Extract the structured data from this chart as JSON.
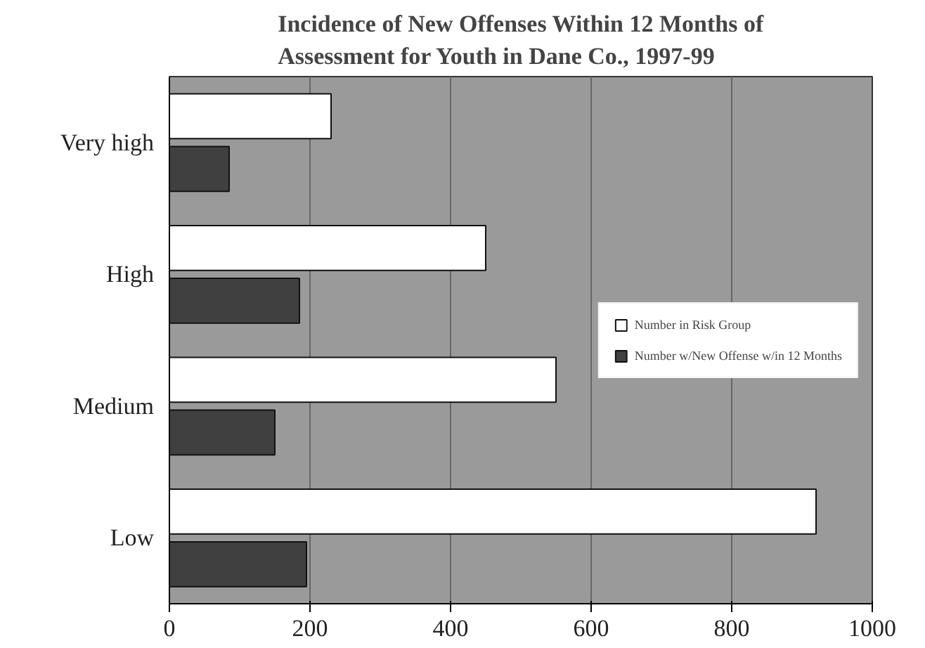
{
  "chart_data": {
    "type": "bar",
    "orientation": "horizontal",
    "title": "Incidence of New Offenses Within 12 Months of\nAssessment for Youth in Dane Co., 1997-99",
    "categories": [
      "Very high",
      "High",
      "Medium",
      "Low"
    ],
    "series": [
      {
        "name": "Number in Risk Group",
        "color": "#ffffff",
        "values": [
          230,
          450,
          550,
          920
        ]
      },
      {
        "name": "Number w/New Offense w/in 12 Months",
        "color": "#404040",
        "values": [
          85,
          185,
          150,
          195
        ]
      }
    ],
    "xlim": [
      0,
      1000
    ],
    "xticks": [
      0,
      200,
      400,
      600,
      800,
      1000
    ],
    "grid": "x",
    "legend": "right"
  }
}
